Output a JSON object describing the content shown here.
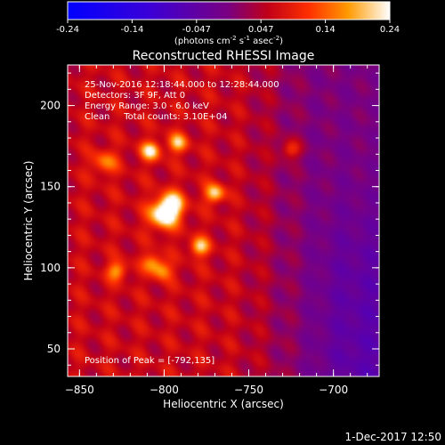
{
  "chart_data": {
    "type": "heatmap",
    "title": "Reconstructed RHESSI Image",
    "xlabel": "Heliocentric X (arcsec)",
    "ylabel": "Heliocentric Y (arcsec)",
    "xlim": [
      -857,
      -673
    ],
    "ylim": [
      33,
      225
    ],
    "x_ticks": [
      -850,
      -800,
      -750,
      -700
    ],
    "y_ticks": [
      50,
      100,
      150,
      200
    ],
    "colorbar": {
      "ticks": [
        "-0.24",
        "-0.14",
        "-0.047",
        "0.047",
        "0.14",
        "0.24"
      ],
      "range": [
        -0.24,
        0.24
      ],
      "unit_prefix": "(photons cm",
      "unit_sup1": "-2",
      "unit_mid1": " s",
      "unit_sup2": "-1",
      "unit_mid2": " asec",
      "unit_sup3": "-2",
      "unit_suffix": ")"
    },
    "annotations": [
      "25-Nov-2016 12:18:44.000 to 12:28:44.000",
      "Detectors: 3F 9F, Att 0",
      "Energy Range: 3.0 - 6.0 keV",
      "Clean     Total counts: 3.10E+04"
    ],
    "peak_label": "Position of Peak = [-792,135]",
    "peak": [
      -792,
      135
    ],
    "sources": [
      {
        "x": -800,
        "y": 133,
        "amp": 0.22,
        "sigma": 6
      },
      {
        "x": -795,
        "y": 140,
        "amp": 0.15,
        "sigma": 5
      },
      {
        "x": -808,
        "y": 172,
        "amp": 0.17,
        "sigma": 4
      },
      {
        "x": -792,
        "y": 177,
        "amp": 0.14,
        "sigma": 4
      },
      {
        "x": -770,
        "y": 146,
        "amp": 0.16,
        "sigma": 4
      },
      {
        "x": -779,
        "y": 113,
        "amp": 0.15,
        "sigma": 4
      },
      {
        "x": -828,
        "y": 98,
        "amp": 0.12,
        "sigma": 4
      },
      {
        "x": -807,
        "y": 103,
        "amp": 0.11,
        "sigma": 4
      },
      {
        "x": -801,
        "y": 98,
        "amp": 0.11,
        "sigma": 4
      },
      {
        "x": -835,
        "y": 165,
        "amp": 0.1,
        "sigma": 5
      },
      {
        "x": -725,
        "y": 173,
        "amp": 0.1,
        "sigma": 4
      }
    ]
  },
  "footer": {
    "timestamp": "1-Dec-2017 12:50"
  }
}
